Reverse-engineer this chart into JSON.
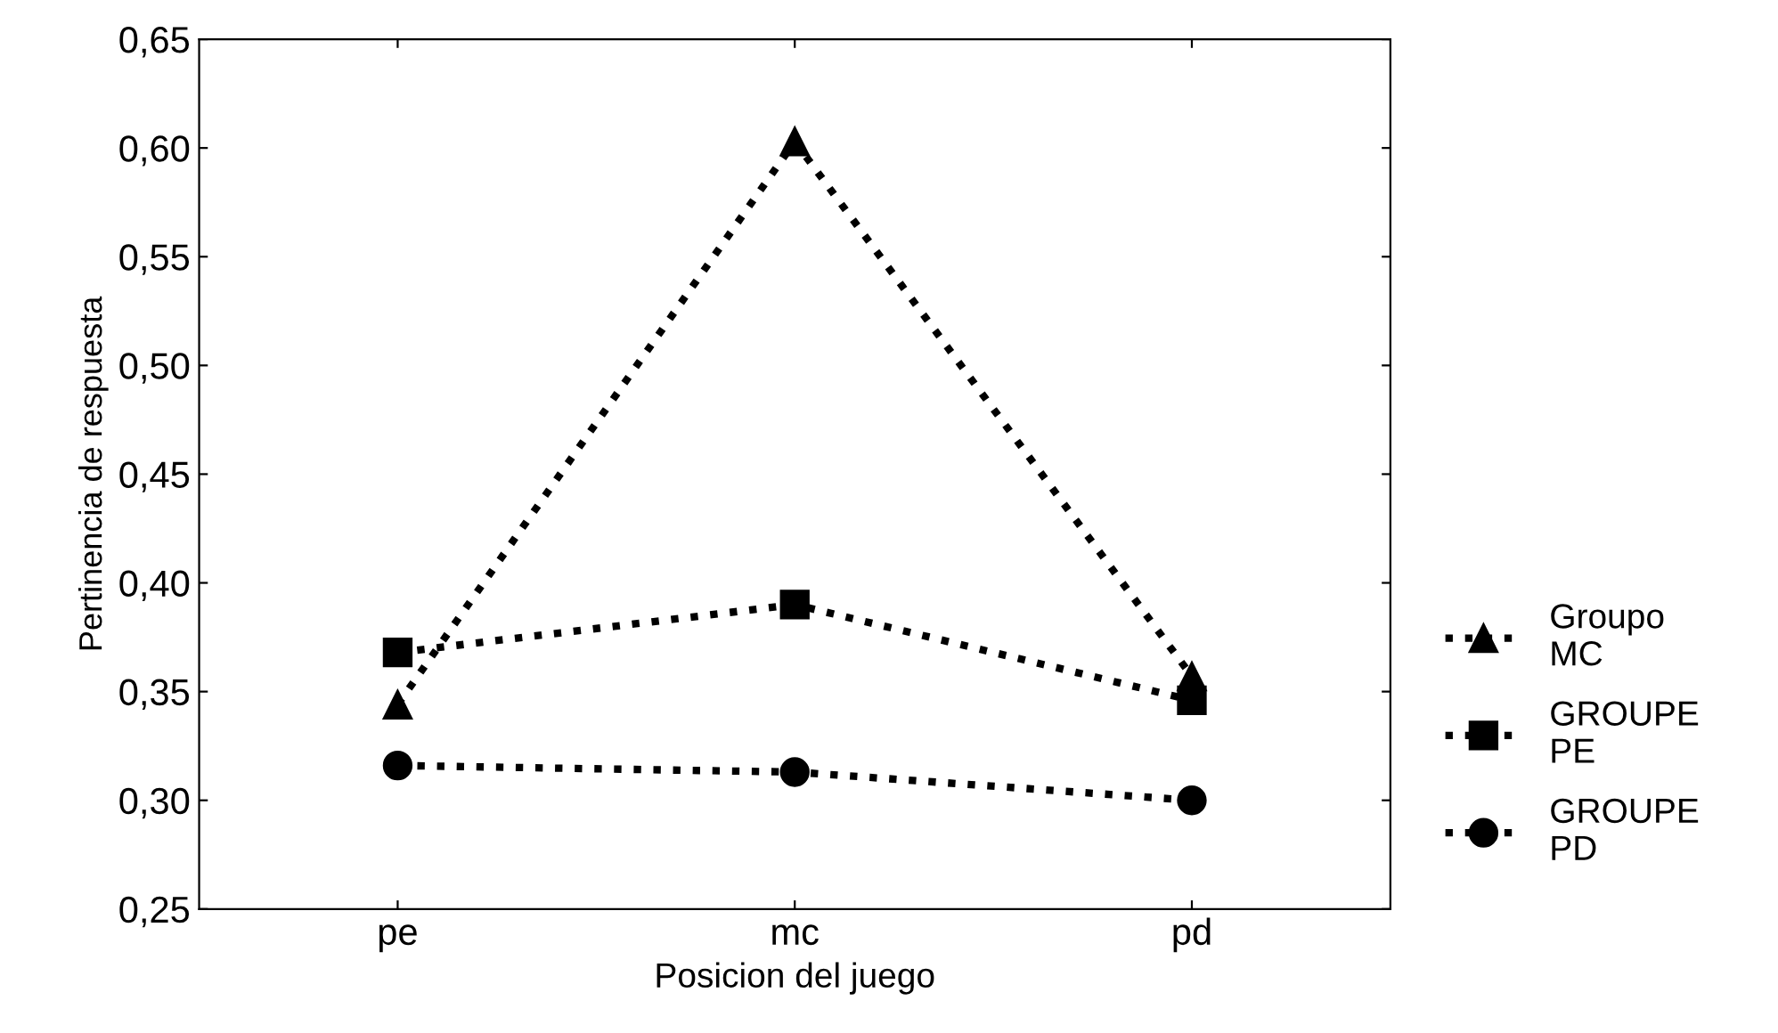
{
  "chart_data": {
    "type": "line",
    "xlabel": "Posicion del juego",
    "ylabel": "Pertinencia de respuesta",
    "categories": [
      "pe",
      "mc",
      "pd"
    ],
    "series": [
      {
        "name": "Groupo\nMC",
        "color": "#000000",
        "marker": "triangle",
        "values": [
          0.344,
          0.603,
          0.357
        ]
      },
      {
        "name": "GROUPE\nPE",
        "color": "#000000",
        "marker": "square",
        "values": [
          0.368,
          0.39,
          0.346
        ]
      },
      {
        "name": "GROUPE\nPD",
        "color": "#000000",
        "marker": "circle",
        "values": [
          0.316,
          0.313,
          0.3
        ]
      }
    ],
    "ylim": [
      0.25,
      0.65
    ],
    "yticks": [
      {
        "value": 0.25,
        "label": "0,25"
      },
      {
        "value": 0.3,
        "label": "0,30"
      },
      {
        "value": 0.35,
        "label": "0,35"
      },
      {
        "value": 0.4,
        "label": "0,40"
      },
      {
        "value": 0.45,
        "label": "0,45"
      },
      {
        "value": 0.5,
        "label": "0,50"
      },
      {
        "value": 0.55,
        "label": "0,55"
      },
      {
        "value": 0.6,
        "label": "0,60"
      },
      {
        "value": 0.65,
        "label": "0,65"
      }
    ],
    "line_style": "dotted",
    "grid": false,
    "legend": "right"
  }
}
